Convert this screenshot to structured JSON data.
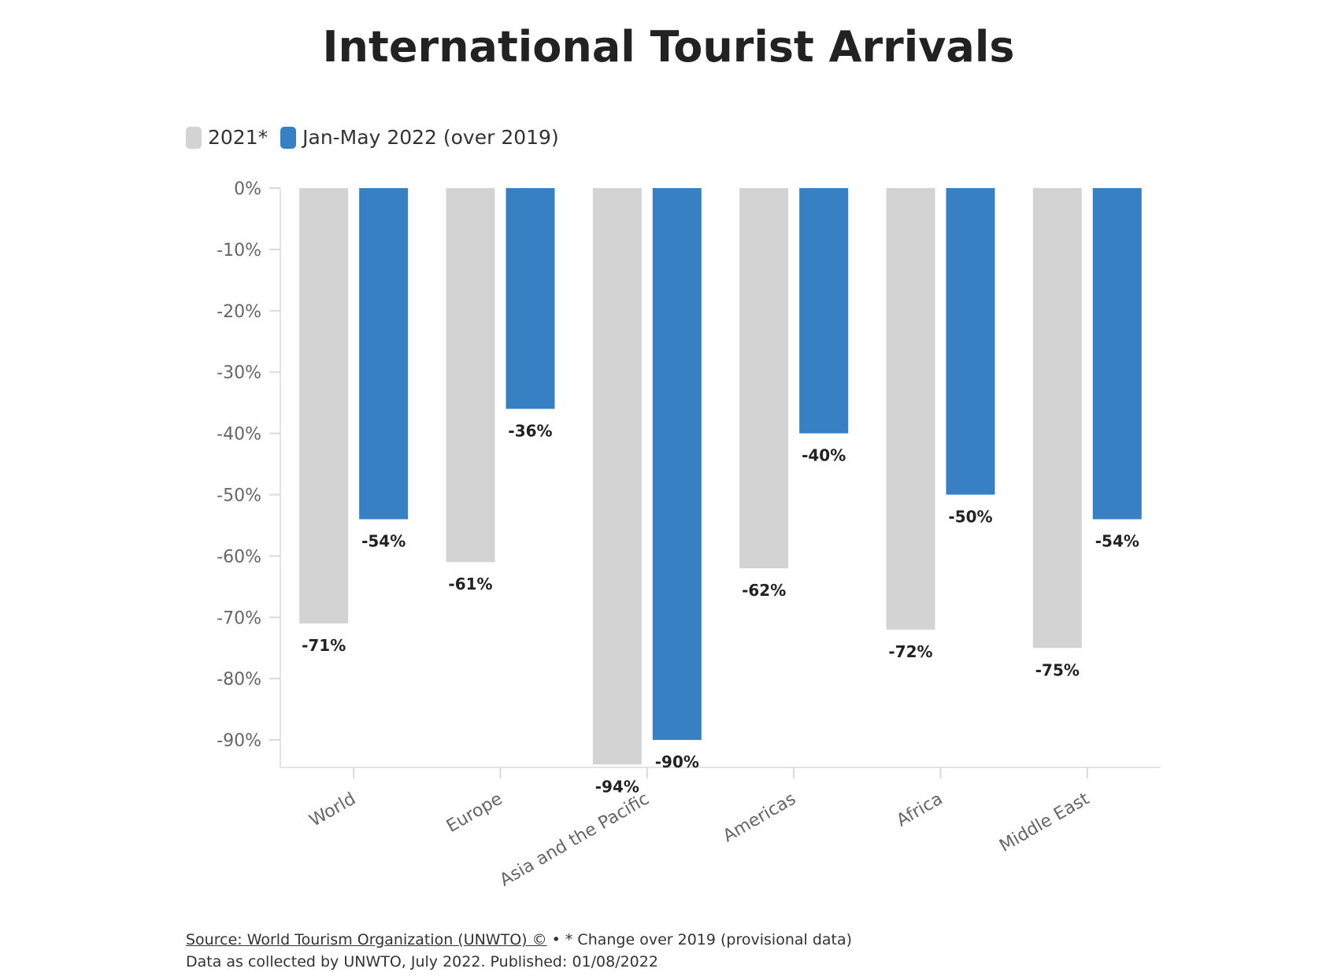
{
  "chart_data": {
    "type": "bar",
    "title": "International Tourist Arrivals",
    "categories": [
      "World",
      "Europe",
      "Asia and the Pacific",
      "Americas",
      "Africa",
      "Middle East"
    ],
    "series": [
      {
        "name": "2021*",
        "color": "#d3d3d3",
        "values": [
          -71,
          -61,
          -94,
          -62,
          -72,
          -75
        ]
      },
      {
        "name": "Jan-May 2022 (over 2019)",
        "color": "#3880c4",
        "values": [
          -54,
          -36,
          -90,
          -40,
          -50,
          -54
        ]
      }
    ],
    "value_suffix": "%",
    "ylim": [
      -95,
      0
    ],
    "yticks": [
      0,
      -10,
      -20,
      -30,
      -40,
      -50,
      -60,
      -70,
      -80,
      -90
    ],
    "ytick_labels": [
      "0%",
      "-10%",
      "-20%",
      "-30%",
      "-40%",
      "-50%",
      "-60%",
      "-70%",
      "-80%",
      "-90%"
    ],
    "data_labels": true,
    "legend_position": "top-left",
    "grid": false
  },
  "footer": {
    "source_link": "Source: World Tourism Organization (UNWTO) ©",
    "source_note": " • * Change over 2019 (provisional data)",
    "collected": "Data as collected by UNWTO, July 2022. Published: 01/08/2022"
  }
}
